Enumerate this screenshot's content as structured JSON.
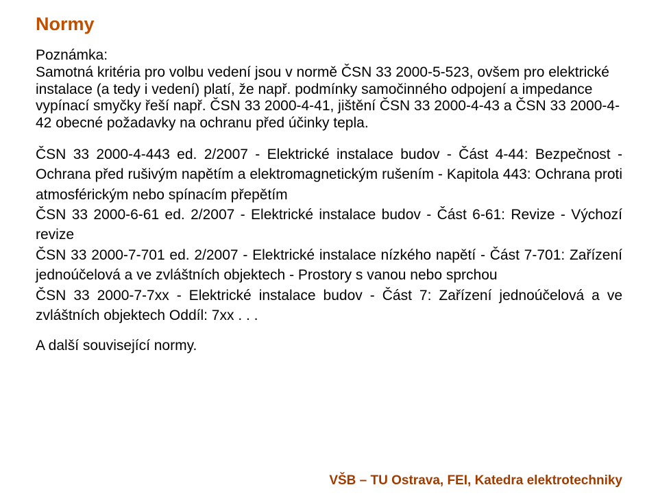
{
  "colors": {
    "title": "#bf5000",
    "body": "#000000",
    "footer": "#a03c00",
    "background": "#ffffff"
  },
  "title": "Normy",
  "paragraphs": {
    "p1": "Poznámka:\nSamotná kritéria pro volbu vedení jsou v normě ČSN 33 2000-5-523, ovšem pro elektrické instalace (a tedy i vedení) platí, že např. podmínky samočinného odpojení a impedance vypínací smyčky řeší např. ČSN 33 2000-4-41, jištění ČSN 33 2000-4-43 a ČSN 33 2000-4-42 obecné požadavky na ochranu před účinky tepla.",
    "p2": "ČSN 33 2000-4-443 ed. 2/2007 - Elektrické instalace budov - Část 4-44: Bezpečnost - Ochrana před rušivým napětím a elektromagnetickým rušením - Kapitola 443: Ochrana proti atmosférickým nebo spínacím přepětím\nČSN 33 2000-6-61 ed. 2/2007 - Elektrické instalace budov - Část 6-61: Revize - Výchozí revize\nČSN 33 2000-7-701 ed. 2/2007 - Elektrické instalace nízkého napětí - Část 7-701: Zařízení jednoúčelová a ve zvláštních objektech - Prostory s vanou nebo sprchou\nČSN 33 2000-7-7xx - Elektrické instalace budov - Část 7: Zařízení jednoúčelová a ve zvláštních objektech Oddíl: 7xx . . .",
    "p3": "A další související normy."
  },
  "footer": "VŠB – TU Ostrava, FEI, Katedra elektrotechniky"
}
